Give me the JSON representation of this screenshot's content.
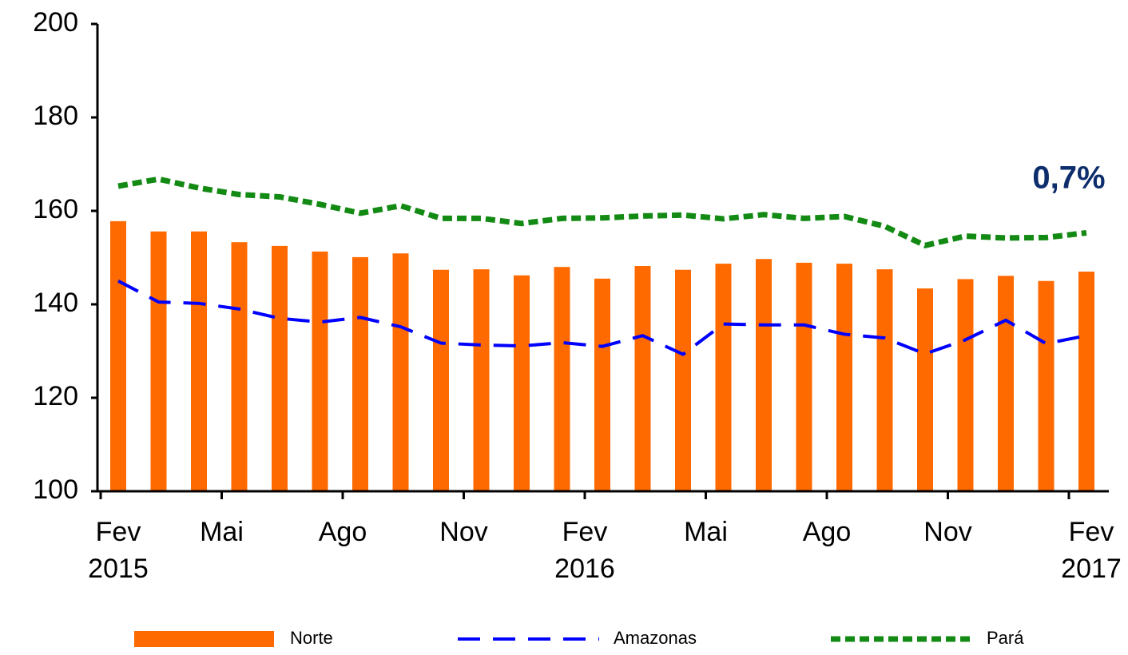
{
  "chart_data": {
    "type": "bar_line",
    "categories": [
      "Fev 2015",
      null,
      null,
      "Mai",
      null,
      null,
      "Ago",
      null,
      null,
      "Nov",
      null,
      null,
      "Fev 2016",
      null,
      null,
      "Mai",
      null,
      null,
      "Ago",
      null,
      null,
      "Nov",
      null,
      null,
      "Fev 2017"
    ],
    "series": [
      {
        "name": "Norte",
        "type": "bar",
        "color": "#ff6a00",
        "values": [
          157.8,
          155.6,
          155.6,
          153.3,
          152.5,
          151.3,
          150.1,
          150.9,
          147.4,
          147.5,
          146.2,
          148.0,
          145.5,
          148.2,
          147.4,
          148.7,
          149.7,
          148.9,
          148.7,
          147.5,
          143.4,
          145.4,
          146.1,
          145.0,
          147.0
        ]
      },
      {
        "name": "Amazonas",
        "type": "line",
        "color": "#0000ff",
        "dash": "28,16",
        "values": [
          145.0,
          140.5,
          140.2,
          139.0,
          137.0,
          136.2,
          137.2,
          135.2,
          131.7,
          131.3,
          131.1,
          131.8,
          131.0,
          133.3,
          129.3,
          135.8,
          135.6,
          135.6,
          133.6,
          132.8,
          129.4,
          132.4,
          136.6,
          131.6,
          133.3
        ]
      },
      {
        "name": "Pará",
        "type": "line",
        "color": "#138a13",
        "dash": "12,6",
        "values": [
          165.3,
          166.8,
          164.9,
          163.5,
          163.0,
          161.4,
          159.5,
          161.1,
          158.4,
          158.4,
          157.3,
          158.4,
          158.5,
          158.9,
          159.1,
          158.3,
          159.2,
          158.4,
          158.8,
          156.7,
          152.6,
          154.6,
          154.2,
          154.3,
          155.3
        ]
      }
    ],
    "annotation": "0,7%",
    "ylim": [
      100,
      200
    ],
    "yticks": [
      100,
      120,
      140,
      160,
      180,
      200
    ]
  }
}
